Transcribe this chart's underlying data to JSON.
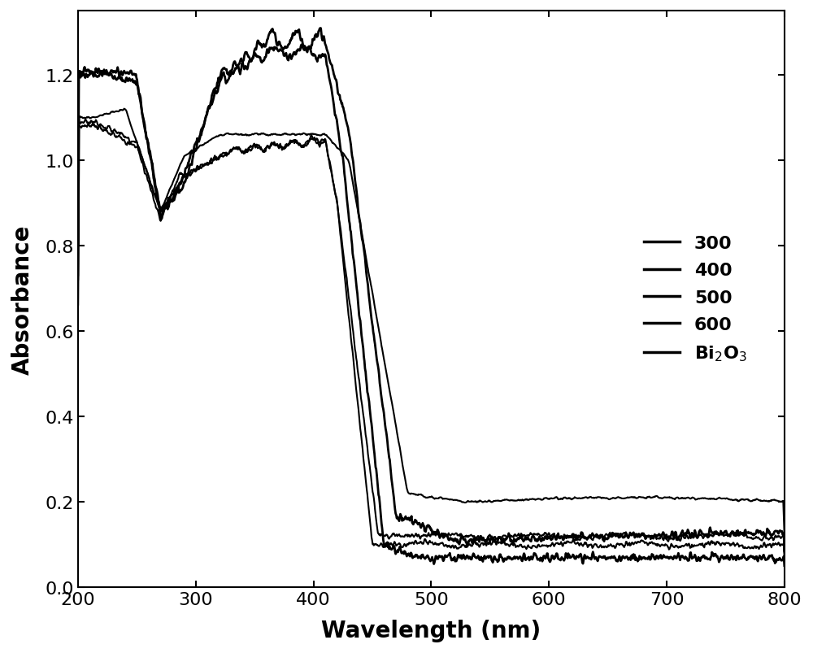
{
  "xlabel": "Wavelength (nm)",
  "ylabel": "Absorbance",
  "xlim": [
    200,
    800
  ],
  "ylim": [
    0.0,
    1.35
  ],
  "yticks": [
    0.0,
    0.2,
    0.4,
    0.6,
    0.8,
    1.0,
    1.2
  ],
  "xticks": [
    200,
    300,
    400,
    500,
    600,
    700,
    800
  ],
  "legend_labels": [
    "300",
    "400",
    "500",
    "600",
    "Bi$_2$O$_3$"
  ],
  "line_widths": [
    2.0,
    2.0,
    1.5,
    1.5,
    1.5
  ],
  "line_colors": [
    "#000000",
    "#000000",
    "#000000",
    "#000000",
    "#000000"
  ],
  "background_color": "#ffffff",
  "xlabel_fontsize": 20,
  "ylabel_fontsize": 20,
  "tick_fontsize": 16,
  "legend_fontsize": 16
}
